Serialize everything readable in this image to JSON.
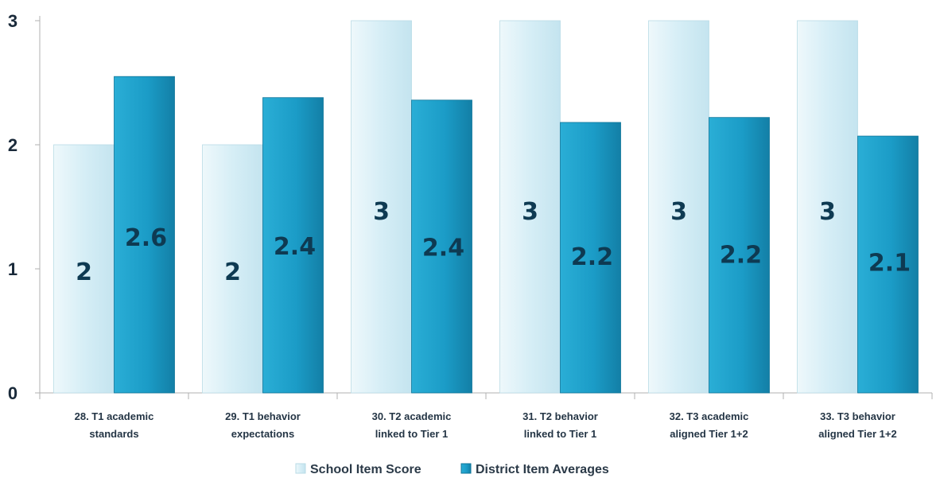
{
  "chart_data": {
    "type": "bar",
    "categories": [
      [
        "28. T1 academic",
        "standards"
      ],
      [
        "29. T1 behavior",
        "expectations"
      ],
      [
        "30. T2 academic",
        "linked to Tier 1"
      ],
      [
        "31. T2 behavior",
        "linked to Tier 1"
      ],
      [
        "32. T3 academic",
        "aligned Tier 1+2"
      ],
      [
        "33. T3 behavior",
        "aligned Tier 1+2"
      ]
    ],
    "series": [
      {
        "name": "School Item Score",
        "values": [
          2,
          2,
          3,
          3,
          3,
          3
        ],
        "labels": [
          "2",
          "2",
          "3",
          "3",
          "3",
          "3"
        ],
        "color": "#dcf0f6"
      },
      {
        "name": "District Item Averages",
        "values": [
          2.55,
          2.38,
          2.36,
          2.18,
          2.22,
          2.07
        ],
        "labels": [
          "2.6",
          "2.4",
          "2.4",
          "2.2",
          "2.2",
          "2.1"
        ],
        "color": "#1ea2cc"
      }
    ],
    "yticks": [
      0,
      1,
      2,
      3
    ],
    "ylim": [
      0,
      3
    ],
    "title": "",
    "xlabel": "",
    "ylabel": "",
    "grid": false,
    "legend": "bottom"
  }
}
